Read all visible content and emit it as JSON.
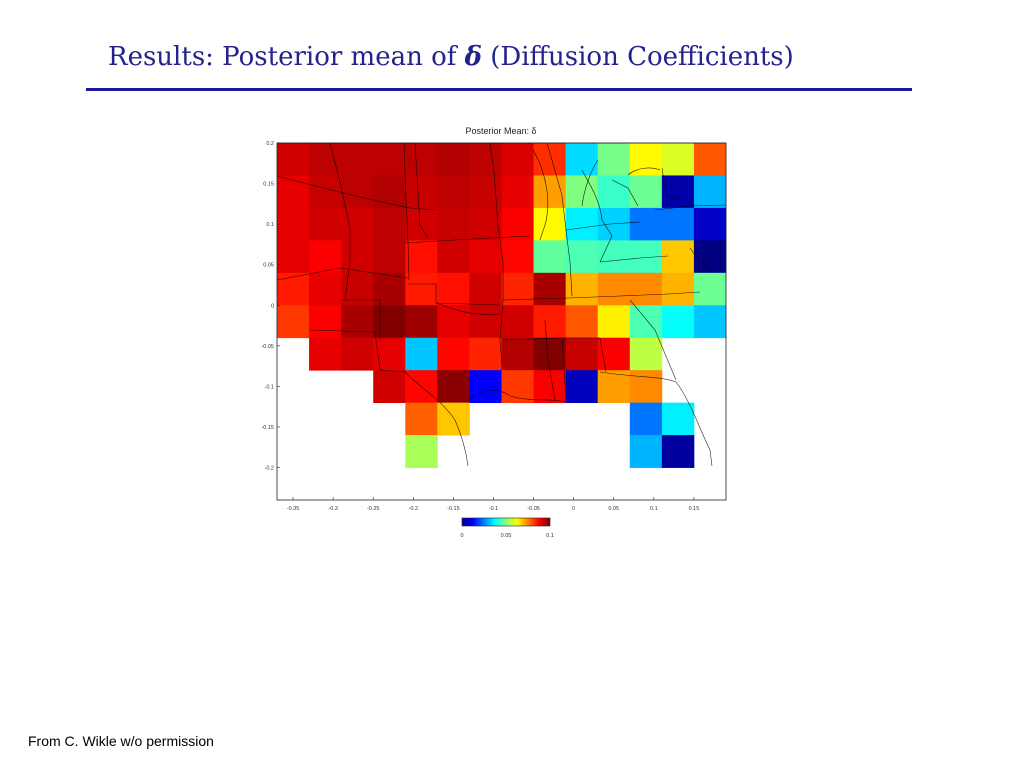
{
  "slide": {
    "title_prefix": "Results: Posterior mean of",
    "title_symbol": "δ",
    "title_suffix": "(Diffusion Coefficients)",
    "footer": "From C. Wikle w/o permission"
  },
  "chart_data": {
    "type": "heatmap",
    "title": "Posterior Mean: δ",
    "xlabel": "",
    "ylabel": "",
    "xlim": [
      -0.37,
      0.19
    ],
    "ylim": [
      -0.24,
      0.2
    ],
    "xticks": [
      "-0.35",
      "-0.3",
      "-0.25",
      "-0.2",
      "-0.15",
      "-0.1",
      "-0.05",
      "0",
      "0.05",
      "0.1",
      "0.15"
    ],
    "xtick_values": [
      -0.35,
      -0.3,
      -0.25,
      -0.2,
      -0.15,
      -0.1,
      -0.05,
      0,
      0.05,
      0.1,
      0.15
    ],
    "yticks": [
      "0.2",
      "0.15",
      "0.1",
      "0.05",
      "0",
      "-0.05",
      "-0.1",
      "-0.15",
      "-0.2"
    ],
    "ytick_values": [
      0.2,
      0.15,
      0.1,
      0.05,
      0,
      -0.05,
      -0.1,
      -0.15,
      -0.2
    ],
    "x_edges": [
      -0.37,
      -0.33,
      -0.29,
      -0.25,
      -0.21,
      -0.17,
      -0.13,
      -0.09,
      -0.05,
      -0.01,
      0.03,
      0.07,
      0.11,
      0.15,
      0.19
    ],
    "y_edges": [
      0.2,
      0.16,
      0.12,
      0.08,
      0.04,
      0.0,
      -0.04,
      -0.08,
      -0.12,
      -0.16,
      -0.2
    ],
    "values": [
      [
        0.092,
        0.094,
        0.094,
        0.094,
        0.094,
        0.095,
        0.094,
        0.091,
        0.083,
        0.034,
        0.049,
        0.063,
        0.059,
        0.079
      ],
      [
        0.09,
        0.093,
        0.094,
        0.095,
        0.093,
        0.094,
        0.093,
        0.09,
        0.072,
        0.05,
        0.043,
        0.048,
        0.004,
        0.03
      ],
      [
        0.09,
        0.092,
        0.092,
        0.094,
        0.092,
        0.093,
        0.092,
        0.088,
        0.063,
        0.036,
        0.033,
        0.024,
        0.024,
        0.007
      ],
      [
        0.09,
        0.088,
        0.092,
        0.094,
        0.086,
        0.092,
        0.09,
        0.087,
        0.047,
        0.045,
        0.044,
        0.044,
        0.068,
        0.0
      ],
      [
        0.085,
        0.09,
        0.093,
        0.096,
        0.085,
        0.086,
        0.092,
        0.084,
        0.096,
        0.07,
        0.074,
        0.074,
        0.07,
        0.048
      ],
      [
        0.082,
        0.088,
        0.096,
        0.1,
        0.097,
        0.09,
        0.092,
        0.092,
        0.085,
        0.079,
        0.064,
        0.045,
        0.038,
        0.032
      ],
      [
        null,
        0.09,
        0.092,
        0.09,
        0.032,
        0.087,
        0.084,
        0.095,
        0.1,
        0.093,
        0.088,
        0.056,
        null,
        null
      ],
      [
        null,
        null,
        null,
        0.092,
        0.087,
        0.099,
        0.012,
        0.082,
        0.088,
        0.006,
        0.072,
        0.074,
        null,
        null
      ],
      [
        null,
        null,
        null,
        null,
        0.078,
        0.068,
        null,
        null,
        null,
        null,
        null,
        0.024,
        0.036,
        null
      ],
      [
        null,
        null,
        null,
        null,
        0.054,
        null,
        null,
        null,
        null,
        null,
        null,
        0.03,
        0.003,
        null
      ]
    ],
    "colorbar": {
      "ticks": [
        "0",
        "0.05",
        "0.1"
      ],
      "tick_values": [
        0,
        0.05,
        0.1
      ],
      "range": [
        0,
        0.1
      ],
      "colormap": "jet"
    },
    "grid": false,
    "overlay": "state boundaries"
  }
}
